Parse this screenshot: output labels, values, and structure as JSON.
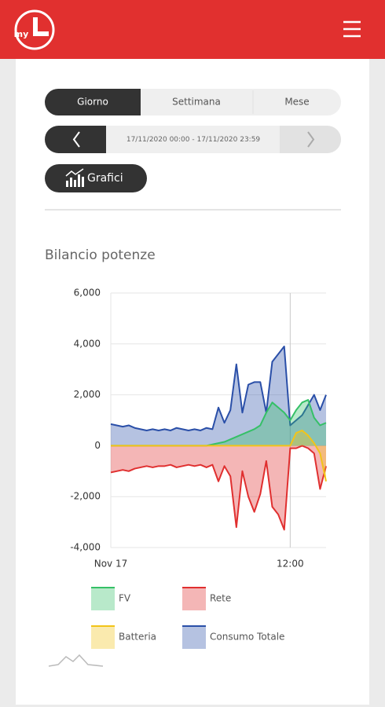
{
  "header": {
    "logo": "my"
  },
  "tabs": [
    "Giorno",
    "Settimana",
    "Mese"
  ],
  "date_range": "17/11/2020 00:00 - 17/11/2020 23:59",
  "button": "Grafici",
  "chart_data": {
    "type": "area",
    "title": "Bilancio potenze",
    "x": [
      0,
      0.4,
      0.8,
      1.2,
      1.6,
      2.0,
      2.4,
      2.8,
      3.2,
      3.6,
      4.0,
      4.4,
      4.8,
      5.2,
      5.6,
      6.0,
      6.4,
      6.8,
      7.2,
      7.6,
      8.0,
      8.4,
      8.8,
      9.2,
      9.6,
      10.0,
      10.4,
      10.8,
      11.2,
      11.6,
      12.0,
      12.4,
      12.8,
      13.2,
      13.6,
      14.0,
      14.4
    ],
    "xlim": [
      0,
      14.4
    ],
    "xticks": [
      {
        "value": 0,
        "label": "Nov 17"
      },
      {
        "value": 12,
        "label": "12:00"
      }
    ],
    "ylim": [
      -4000,
      6000
    ],
    "yticks": [
      {
        "value": -4000,
        "label": "-4,000"
      },
      {
        "value": -2000,
        "label": "-2,000"
      },
      0,
      {
        "value": 2000,
        "label": "2,000"
      },
      {
        "value": 4000,
        "label": "4,000"
      },
      {
        "value": 6000,
        "label": "6,000"
      }
    ],
    "grid": true,
    "series": [
      {
        "name": "Consumo Totale",
        "color": "#2a4fa8",
        "values": [
          850,
          800,
          750,
          800,
          700,
          650,
          600,
          650,
          600,
          650,
          600,
          700,
          650,
          600,
          650,
          600,
          700,
          650,
          1500,
          900,
          1400,
          3200,
          1300,
          2400,
          2500,
          2500,
          1300,
          3300,
          3600,
          3900,
          800,
          1000,
          1200,
          1600,
          2000,
          1400,
          2000
        ]
      },
      {
        "name": "FV",
        "color": "#35c067",
        "values": [
          0,
          0,
          0,
          0,
          0,
          0,
          0,
          0,
          0,
          0,
          0,
          0,
          0,
          0,
          0,
          0,
          0,
          50,
          100,
          150,
          250,
          350,
          450,
          550,
          650,
          800,
          1300,
          1700,
          1500,
          1300,
          1000,
          1400,
          1700,
          1800,
          1100,
          800,
          900
        ]
      },
      {
        "name": "Rete",
        "color": "#e02f2f",
        "values": [
          -1050,
          -1000,
          -950,
          -1000,
          -900,
          -850,
          -800,
          -850,
          -800,
          -800,
          -750,
          -850,
          -800,
          -750,
          -800,
          -750,
          -850,
          -750,
          -1400,
          -800,
          -1200,
          -3200,
          -1000,
          -2000,
          -2600,
          -1900,
          -600,
          -2400,
          -2700,
          -3300,
          -100,
          -100,
          0,
          -100,
          -300,
          -1700,
          -800
        ]
      },
      {
        "name": "Batteria",
        "color": "#f2c418",
        "values": [
          0,
          0,
          0,
          0,
          0,
          0,
          0,
          0,
          0,
          0,
          0,
          0,
          0,
          0,
          0,
          0,
          0,
          0,
          0,
          0,
          0,
          0,
          0,
          0,
          0,
          0,
          0,
          0,
          0,
          0,
          0,
          500,
          600,
          400,
          100,
          -300,
          -1400
        ]
      }
    ],
    "legend_order": [
      1,
      2,
      3,
      0
    ]
  }
}
